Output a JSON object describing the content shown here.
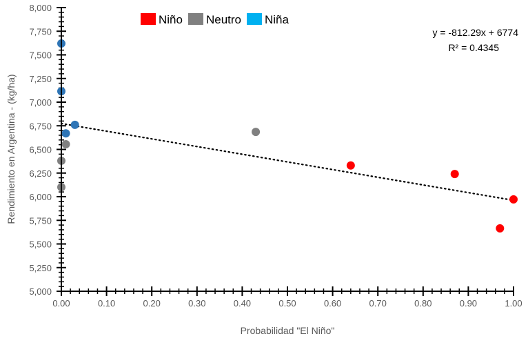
{
  "chart_data": {
    "type": "scatter",
    "title": "",
    "xlabel": "Probabilidad \"El Niño\"",
    "ylabel": "Rendimiento en Argentina - (kg/ha)",
    "xlim": [
      0,
      1
    ],
    "ylim": [
      5000,
      8000
    ],
    "x_ticks": [
      "0.00",
      "0.10",
      "0.20",
      "0.30",
      "0.40",
      "0.50",
      "0.60",
      "0.70",
      "0.80",
      "0.90",
      "1.00"
    ],
    "y_ticks": [
      "5,000",
      "5,250",
      "5,500",
      "5,750",
      "6,000",
      "6,250",
      "6,500",
      "6,750",
      "7,000",
      "7,250",
      "7,500",
      "7,750",
      "8,000"
    ],
    "grid": false,
    "legend": {
      "placement": "top-left",
      "entries": [
        {
          "name": "Niño",
          "color": "#FF0000"
        },
        {
          "name": "Neutro",
          "color": "#808080"
        },
        {
          "name": "Niña",
          "color": "#00B0F0"
        }
      ]
    },
    "series": [
      {
        "name": "Niña",
        "color": "#2E75B6",
        "points": [
          [
            0.0,
            7620
          ],
          [
            0.0,
            7115
          ],
          [
            0.03,
            6760
          ],
          [
            0.01,
            6670
          ]
        ]
      },
      {
        "name": "Neutro",
        "color": "#808080",
        "points": [
          [
            0.01,
            6555
          ],
          [
            0.0,
            6380
          ],
          [
            0.0,
            6100
          ],
          [
            0.43,
            6685
          ]
        ]
      },
      {
        "name": "Niño",
        "color": "#FF0000",
        "points": [
          [
            0.64,
            6330
          ],
          [
            0.87,
            6240
          ],
          [
            0.97,
            5665
          ],
          [
            1.0,
            5972
          ]
        ]
      }
    ],
    "trendline": {
      "slope": -812.29,
      "intercept": 6774,
      "style": "dotted",
      "color": "#000000"
    },
    "annotations": {
      "equation": "y = -812.29x + 6774",
      "r2": "R² = 0.4345"
    }
  }
}
